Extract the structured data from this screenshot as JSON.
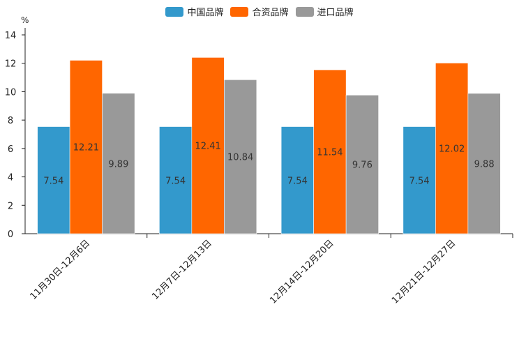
{
  "chart_data": {
    "type": "bar",
    "unit_label": "%",
    "categories": [
      "11月30日-12月6日",
      "12月7日-12月13日",
      "12月14日-12月20日",
      "12月21日-12月27日"
    ],
    "series": [
      {
        "name": "中国品牌",
        "color": "#3399cc",
        "values": [
          7.54,
          7.54,
          7.54,
          7.54
        ],
        "labels": [
          "7.54",
          "7.54",
          "7.54",
          "7.54"
        ]
      },
      {
        "name": "合资品牌",
        "color": "#ff6600",
        "values": [
          12.21,
          12.41,
          11.54,
          12.02
        ],
        "labels": [
          "12.21",
          "12.41",
          "11.54",
          "12.02"
        ]
      },
      {
        "name": "进口品牌",
        "color": "#999999",
        "values": [
          9.89,
          10.84,
          9.76,
          9.88
        ],
        "labels": [
          "9.89",
          "10.84",
          "9.76",
          "9.88"
        ]
      }
    ],
    "yticks": [
      "0",
      "2",
      "4",
      "6",
      "8",
      "10",
      "12",
      "14"
    ],
    "ylim": [
      0,
      14
    ],
    "grid": false,
    "legend_position": "top-center"
  }
}
